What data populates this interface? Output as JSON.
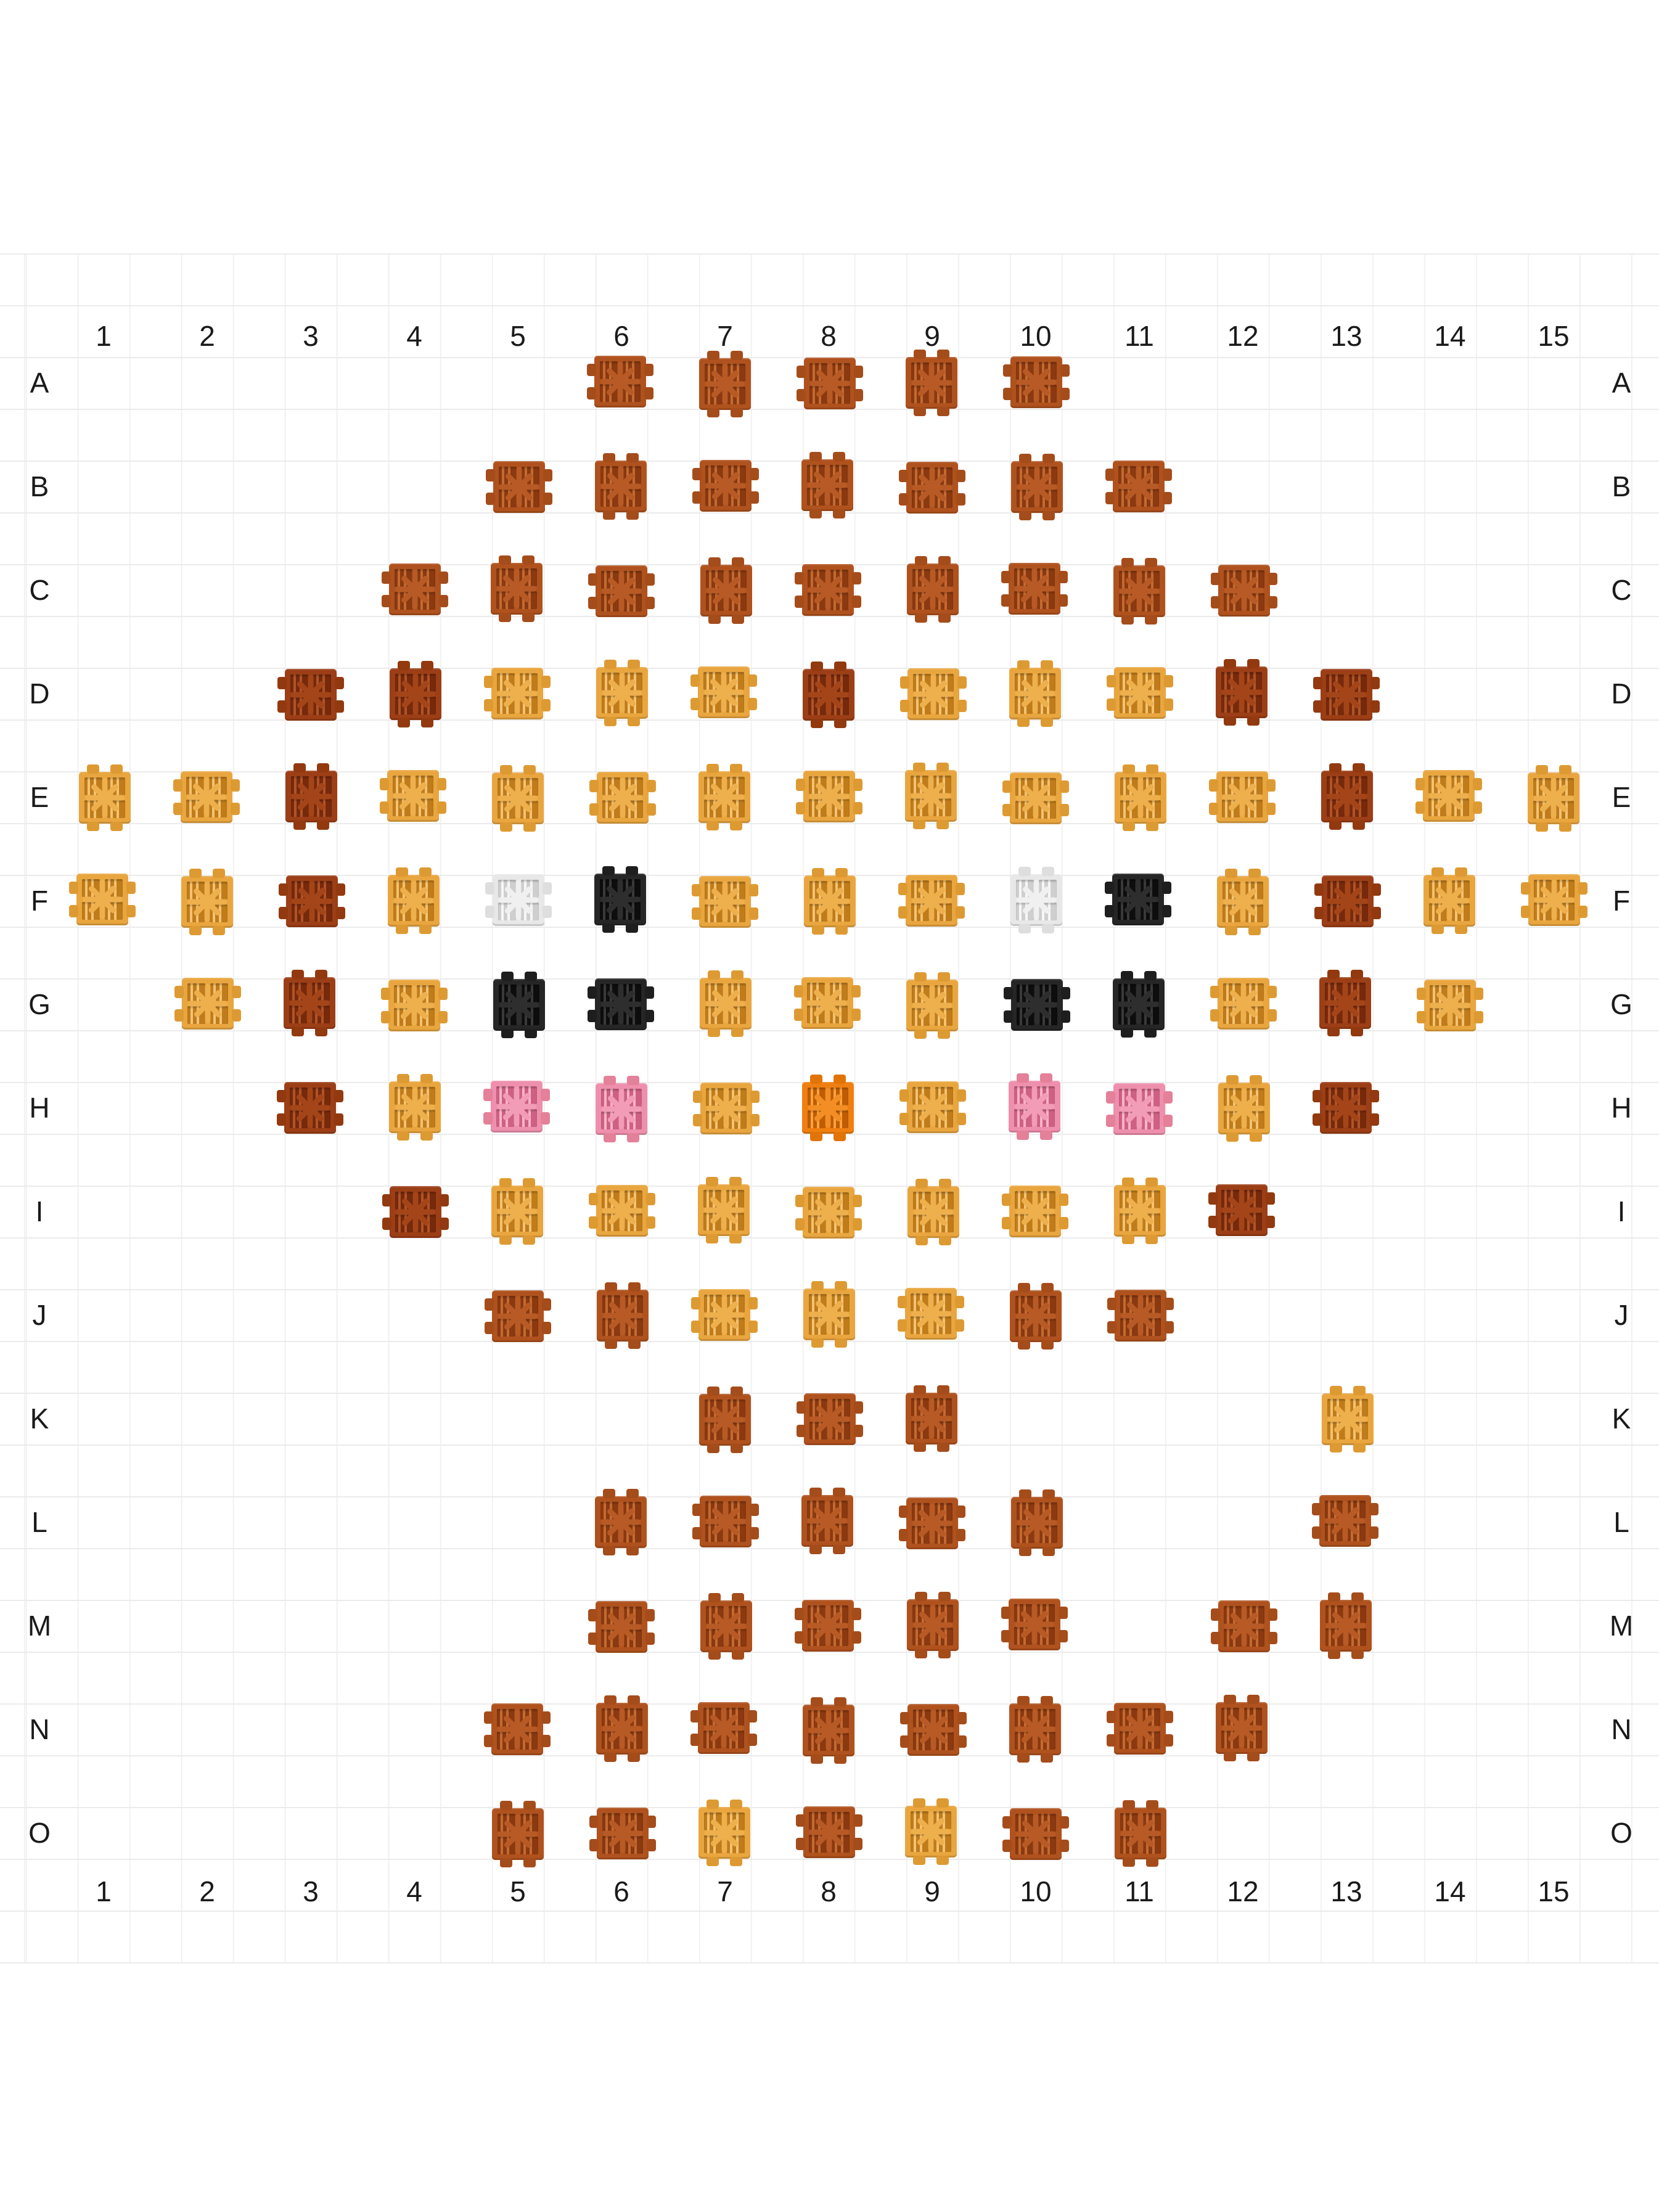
{
  "board": {
    "column_labels": [
      "1",
      "2",
      "3",
      "4",
      "5",
      "6",
      "7",
      "8",
      "9",
      "10",
      "11",
      "12",
      "13",
      "14",
      "15"
    ],
    "row_labels": [
      "A",
      "B",
      "C",
      "D",
      "E",
      "F",
      "G",
      "H",
      "I",
      "J",
      "K",
      "L",
      "M",
      "N",
      "O"
    ],
    "grid": [
      ".....RRRRR.....",
      "....RRRRRRR....",
      "...RRRRRRRRR...",
      "..DDAAADAAADD..",
      "AADAAAAAAAAADAA",
      "AADAWKAAAWKADAA",
      ".ADAKKAAAKKADA.",
      "..DAPPAOAPPAD..",
      "...DAAAAAAAD...",
      "....RRAAARR....",
      "......RRR...A..",
      ".....RRRRR..R..",
      ".....RRRRR.RR..",
      "....RRRRRRRR...",
      "....RRARARR...."
    ],
    "empty_code": ".",
    "palette": {
      "R": {
        "name": "terracotta-brown",
        "body": "#B0521E",
        "hole": "#8A3910",
        "stripe": "#C46A31",
        "star": "#B85A25",
        "nub": "#A54C1B"
      },
      "D": {
        "name": "dark-auburn-brown",
        "body": "#9C3E16",
        "hole": "#77290B",
        "stripe": "#B05428",
        "star": "#A44519",
        "nub": "#92390F"
      },
      "A": {
        "name": "amber-gold",
        "body": "#E9A63F",
        "hole": "#C07C1B",
        "stripe": "#F4C271",
        "star": "#EEAF4D",
        "nub": "#DE9A32"
      },
      "K": {
        "name": "black",
        "body": "#262626",
        "hole": "#0D0D0D",
        "stripe": "#3A3A3A",
        "star": "#2E2E2E",
        "nub": "#1E1E1E"
      },
      "W": {
        "name": "white",
        "body": "#E8E8E8",
        "hole": "#CFCFCF",
        "stripe": "#F7F7F7",
        "star": "#F0F0F0",
        "nub": "#DEDEDE"
      },
      "P": {
        "name": "pink",
        "body": "#EE8FAD",
        "hole": "#CE6183",
        "stripe": "#F8B3C8",
        "star": "#F29CB8",
        "nub": "#E48099"
      },
      "O": {
        "name": "bright-orange",
        "body": "#EF7F10",
        "hole": "#C05C02",
        "stripe": "#F9A33F",
        "star": "#F28E24",
        "nub": "#E27406"
      }
    },
    "grid_line_color": "#ebebeb",
    "label_color": "#1a1a1a"
  }
}
